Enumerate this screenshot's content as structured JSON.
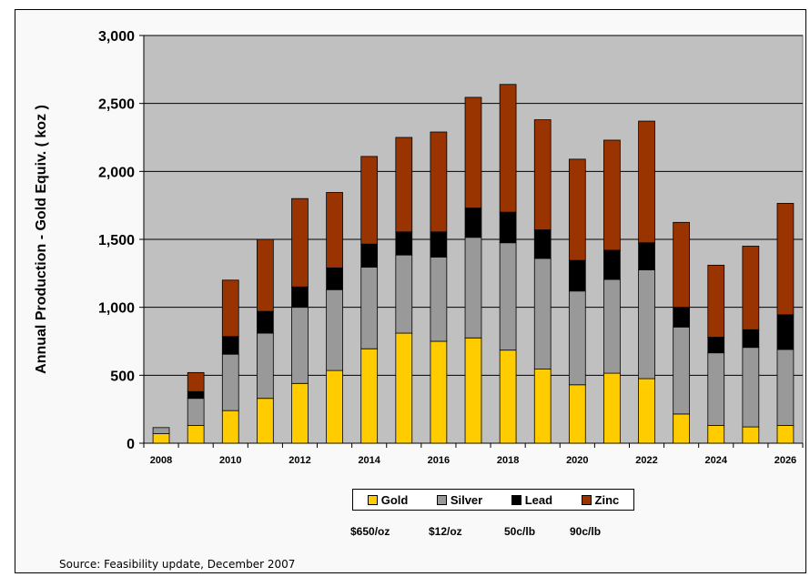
{
  "chart_data": {
    "type": "bar",
    "stacked": true,
    "ylabel": "Annual Production - Gold Equiv.  ( koz )",
    "xlabel": "",
    "ylim": [
      0,
      3000
    ],
    "yticks": [
      "0",
      "500",
      "1,000",
      "1,500",
      "2,000",
      "2,500",
      "3,000"
    ],
    "ytick_values": [
      0,
      500,
      1000,
      1500,
      2000,
      2500,
      3000
    ],
    "categories": [
      "2008",
      "2009",
      "2010",
      "2011",
      "2012",
      "2013",
      "2014",
      "2015",
      "2016",
      "2017",
      "2018",
      "2019",
      "2020",
      "2021",
      "2022",
      "2023",
      "2024",
      "2025",
      "2026"
    ],
    "x_tick_labels": [
      "2008",
      "",
      "2010",
      "",
      "2012",
      "",
      "2014",
      "",
      "2016",
      "",
      "2018",
      "",
      "2020",
      "",
      "2022",
      "",
      "2024",
      "",
      "2026"
    ],
    "grid": true,
    "legend_position": "bottom",
    "series": [
      {
        "name": "Gold",
        "color": "#ffcc00",
        "values": [
          70,
          130,
          240,
          330,
          440,
          535,
          695,
          810,
          750,
          775,
          685,
          545,
          430,
          515,
          475,
          215,
          130,
          120,
          130
        ]
      },
      {
        "name": "Silver",
        "color": "#999999",
        "values": [
          45,
          200,
          415,
          480,
          560,
          595,
          600,
          575,
          620,
          740,
          790,
          815,
          690,
          690,
          800,
          640,
          535,
          585,
          560
        ]
      },
      {
        "name": "Lead",
        "color": "#000000",
        "values": [
          0,
          50,
          130,
          160,
          150,
          160,
          170,
          170,
          185,
          215,
          225,
          210,
          225,
          215,
          200,
          145,
          115,
          130,
          255
        ]
      },
      {
        "name": "Zinc",
        "color": "#993300",
        "values": [
          0,
          140,
          415,
          530,
          650,
          555,
          645,
          695,
          735,
          815,
          940,
          810,
          745,
          810,
          895,
          625,
          530,
          615,
          820
        ]
      }
    ],
    "prices": [
      "$650/oz",
      "$12/oz",
      "50c/lb",
      "90c/lb"
    ]
  },
  "source_text": "Source:  Feasibility update, December 2007",
  "colors": {
    "plot_background": "#c0c0c0",
    "outer_background": "#f9f9f9"
  }
}
